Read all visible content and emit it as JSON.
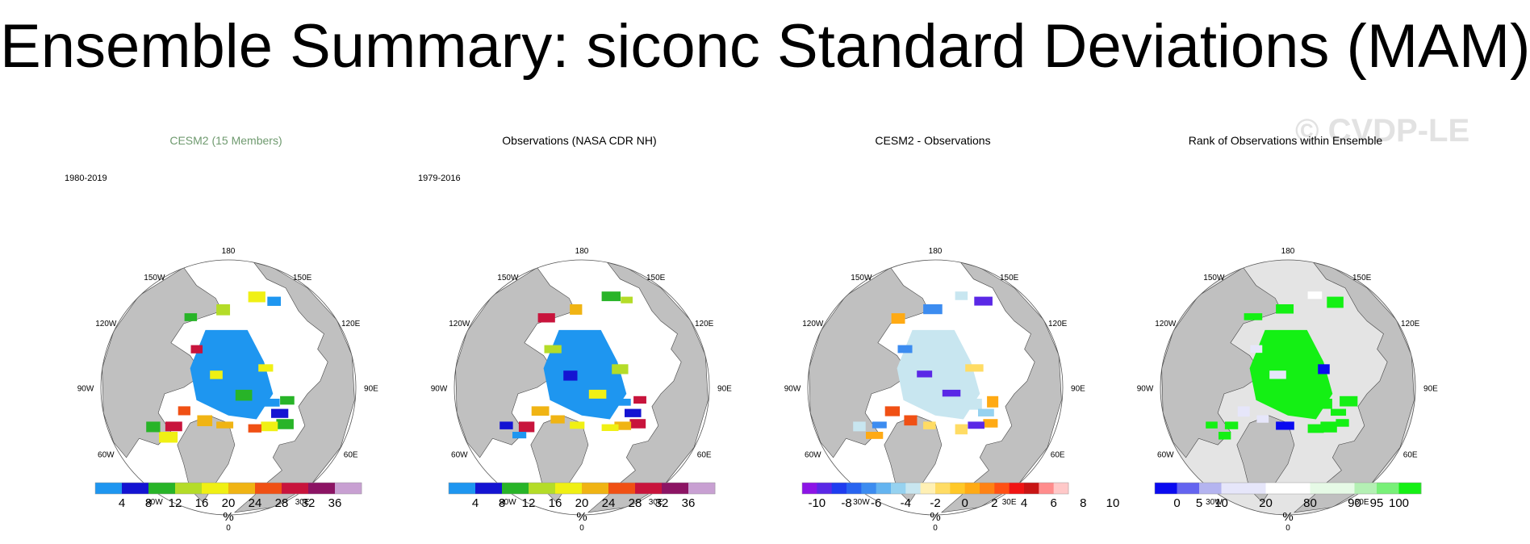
{
  "title": "Ensemble Summary: siconc Standard Deviations (MAM)",
  "watermark": "© CVDP-LE",
  "colors": {
    "land": "#c0c0c0",
    "ocean": "#ffffff",
    "title_green": "#5f9e5f"
  },
  "panels": [
    {
      "title": "CESM2 (15 Members)",
      "title_color": "#6f9a6f",
      "period": "1980-2019",
      "field": "std",
      "colorbar": {
        "colors": [
          "#1e96f0",
          "#1414d2",
          "#28b428",
          "#b4dc28",
          "#f0f014",
          "#f0b414",
          "#f05014",
          "#c8143c",
          "#8c1464",
          "#c8a0d2"
        ],
        "ticks": [
          "4",
          "8",
          "12",
          "16",
          "20",
          "24",
          "28",
          "32",
          "36"
        ],
        "unit": "%"
      }
    },
    {
      "title": "Observations (NASA CDR NH)",
      "title_color": "#000000",
      "period": "1979-2016",
      "field": "std",
      "colorbar": {
        "colors": [
          "#1e96f0",
          "#1414d2",
          "#28b428",
          "#b4dc28",
          "#f0f014",
          "#f0b414",
          "#f05014",
          "#c8143c",
          "#8c1464",
          "#c8a0d2"
        ],
        "ticks": [
          "4",
          "8",
          "12",
          "16",
          "20",
          "24",
          "28",
          "32",
          "36"
        ],
        "unit": "%"
      }
    },
    {
      "title": "CESM2 - Observations",
      "title_color": "#000000",
      "period": "",
      "field": "diff",
      "colorbar": {
        "colors": [
          "#8c14e6",
          "#5a28e6",
          "#1e3cf0",
          "#2864f0",
          "#3c8cf0",
          "#64b4f0",
          "#96d2f0",
          "#c8e6f0",
          "#fff0b4",
          "#ffdc64",
          "#ffc828",
          "#ffaa14",
          "#ff8214",
          "#ff5014",
          "#f01414",
          "#c81414",
          "#ff8c8c",
          "#ffc8c8"
        ],
        "ticks": [
          "-10",
          "-8",
          "-6",
          "-4",
          "-2",
          "0",
          "2",
          "4",
          "6",
          "8",
          "10"
        ],
        "unit": "%"
      }
    },
    {
      "title": "Rank of Observations within Ensemble",
      "title_color": "#000000",
      "period": "",
      "field": "rank",
      "colorbar": {
        "colors": [
          "#0a0af0",
          "#6464f0",
          "#b4b4f0",
          "#e6e6fa",
          "#e6e6fa",
          "#ffffff",
          "#ffffff",
          "#e6fae6",
          "#e6fae6",
          "#b4f0b4",
          "#78f078",
          "#14f014"
        ],
        "ticks": [
          "0",
          "5",
          "10",
          "20",
          "80",
          "90",
          "95",
          "100"
        ],
        "unit": "%"
      }
    }
  ],
  "map_labels": {
    "top": "180",
    "bottom": "0",
    "left": "90W",
    "right": "90E",
    "ul1": "150W",
    "ul2": "120W",
    "ur1": "150E",
    "ur2": "120E",
    "ll1": "60W",
    "ll2": "30W",
    "lr1": "60E",
    "lr2": "30E"
  }
}
